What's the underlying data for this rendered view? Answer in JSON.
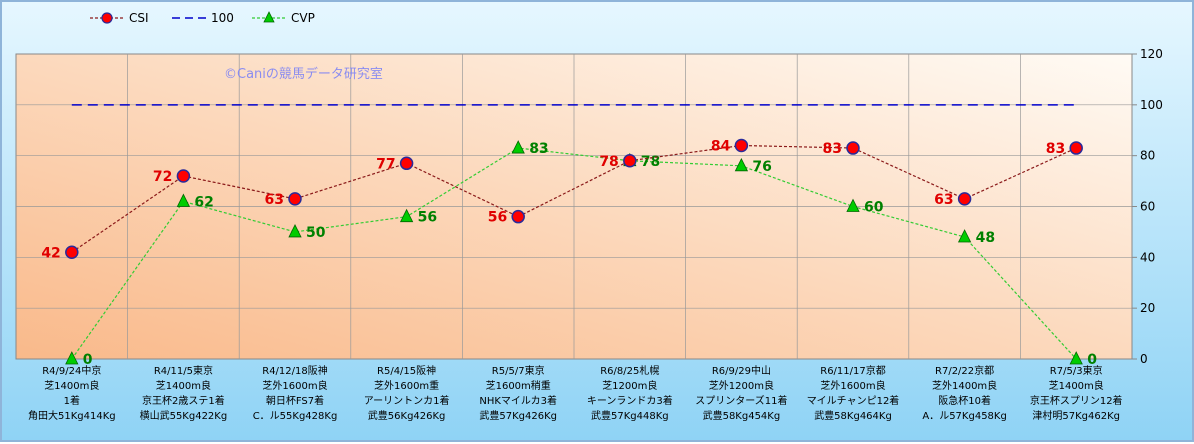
{
  "chart_data": {
    "type": "line",
    "watermark": "©Caniの競馬データ研究室",
    "ylim": [
      0,
      120
    ],
    "yticks": [
      "0",
      "20",
      "40",
      "60",
      "80",
      "100",
      "120"
    ],
    "categories": [
      [
        "R4/9/24中京",
        "芝1400m良",
        "1着",
        "角田大51Kg414Kg"
      ],
      [
        "R4/11/5東京",
        "芝1400m良",
        "京王杯2歳ステ1着",
        "横山武55Kg422Kg"
      ],
      [
        "R4/12/18阪神",
        "芝外1600m良",
        "朝日杯FS7着",
        "C．ル55Kg428Kg"
      ],
      [
        "R5/4/15阪神",
        "芝外1600m重",
        "アーリントンカ1着",
        "武豊56Kg426Kg"
      ],
      [
        "R5/5/7東京",
        "芝1600m稍重",
        "NHKマイルカ3着",
        "武豊57Kg426Kg"
      ],
      [
        "R6/8/25札幌",
        "芝1200m良",
        "キーンランドカ3着",
        "武豊57Kg448Kg"
      ],
      [
        "R6/9/29中山",
        "芝外1200m良",
        "スプリンターズ11着",
        "武豊58Kg454Kg"
      ],
      [
        "R6/11/17京都",
        "芝外1600m良",
        "マイルチャンピ12着",
        "武豊58Kg464Kg"
      ],
      [
        "R7/2/22京都",
        "芝外1400m良",
        "阪急杯10着",
        "A．ル57Kg458Kg"
      ],
      [
        "R7/5/3東京",
        "芝1400m良",
        "京王杯スプリン12着",
        "津村明57Kg462Kg"
      ]
    ],
    "series": [
      {
        "name": "CSI",
        "color": "#8b1a1a",
        "marker": "circle",
        "marker_color": "#ff0000",
        "label_color": "#e00000",
        "values": [
          42,
          72,
          63,
          77,
          56,
          78,
          84,
          83,
          63,
          83
        ],
        "labels": [
          "42",
          "72",
          "63",
          "77",
          "56",
          "78",
          "84",
          "83",
          "63",
          "83"
        ]
      },
      {
        "name": "100",
        "color": "#0000cc",
        "style": "dashed",
        "values": [
          100,
          100,
          100,
          100,
          100,
          100,
          100,
          100,
          100,
          100
        ]
      },
      {
        "name": "CVP",
        "color": "#33cc33",
        "marker": "triangle",
        "marker_color": "#00cc00",
        "label_color": "#008000",
        "values": [
          0,
          62,
          50,
          56,
          83,
          78,
          76,
          60,
          48,
          0
        ],
        "labels": [
          "0",
          "62",
          "50",
          "56",
          "83",
          "78",
          "76",
          "60",
          "48",
          "0"
        ]
      }
    ],
    "legend": {
      "placement": "top-left",
      "labels": [
        "CSI",
        "100",
        "CVP"
      ]
    },
    "grid": true
  }
}
